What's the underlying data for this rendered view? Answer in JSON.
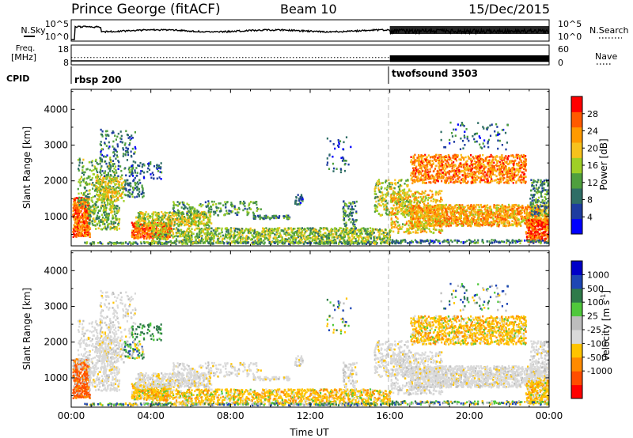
{
  "header": {
    "station": "Prince George (fitACF)",
    "beam": "Beam 10",
    "date": "15/Dec/2015"
  },
  "colors": {
    "power_scale": [
      "#0000ff",
      "#1e3ca0",
      "#2f6e66",
      "#4f9f3e",
      "#9fcf26",
      "#f7c21d",
      "#ff9a00",
      "#ff5a00",
      "#ff0000"
    ],
    "velocity_scale": [
      "#0000c8",
      "#1e46b4",
      "#2f7a4a",
      "#50c83c",
      "#bdbdbd",
      "#d9d9d9",
      "#ffc400",
      "#ff8a00",
      "#ff4d00",
      "#ff0000"
    ]
  },
  "chart_data": [
    {
      "type": "line",
      "panel": "noise",
      "left_label": "N.Sky",
      "right_label": "N.Search",
      "left_ticks": [
        "10^5",
        "10^0"
      ],
      "right_ticks": [
        "10^5",
        "10^0"
      ]
    },
    {
      "type": "line",
      "panel": "frequency",
      "left_label": "Freq.",
      "left_unit": "[MHz]",
      "right_label": "Nave",
      "left_ticks": [
        "18",
        "8"
      ],
      "right_ticks": [
        "60",
        "0"
      ],
      "ylim_left": [
        8,
        18
      ],
      "ylim_right": [
        0,
        60
      ]
    },
    {
      "type": "table",
      "panel": "cpid",
      "label": "CPID",
      "segments": [
        {
          "start_h": 0,
          "end_h": 16,
          "name": "rbsp 200"
        },
        {
          "start_h": 16,
          "end_h": 24,
          "name": "twofsound 3503"
        }
      ]
    },
    {
      "type": "heatmap",
      "panel": "power",
      "ylabel": "Slant Range [km]",
      "xlim_h": [
        0,
        24
      ],
      "ylim_km": [
        180,
        4560
      ],
      "yticks": [
        1000,
        2000,
        3000,
        4000
      ],
      "colorbar": {
        "label": "Power [dB]",
        "ticks": [
          4,
          8,
          12,
          16,
          20,
          24,
          28
        ],
        "min": 0,
        "max": 32
      }
    },
    {
      "type": "heatmap",
      "panel": "velocity",
      "ylabel": "Slant Range [km]",
      "xlabel": "Time UT",
      "xlim_h": [
        0,
        24
      ],
      "ylim_km": [
        180,
        4560
      ],
      "yticks": [
        1000,
        2000,
        3000,
        4000
      ],
      "xticks": [
        0,
        4,
        8,
        12,
        16,
        20,
        24
      ],
      "xtick_labels": [
        "00:00",
        "04:00",
        "08:00",
        "12:00",
        "16:00",
        "20:00",
        "00:00"
      ],
      "colorbar": {
        "label": "Velocity [m s",
        "label_sup": "-1",
        "label_close": "]",
        "ticks": [
          "1000",
          "500",
          "100",
          "25",
          "-25",
          "-100",
          "-500",
          "-1000"
        ]
      }
    }
  ]
}
